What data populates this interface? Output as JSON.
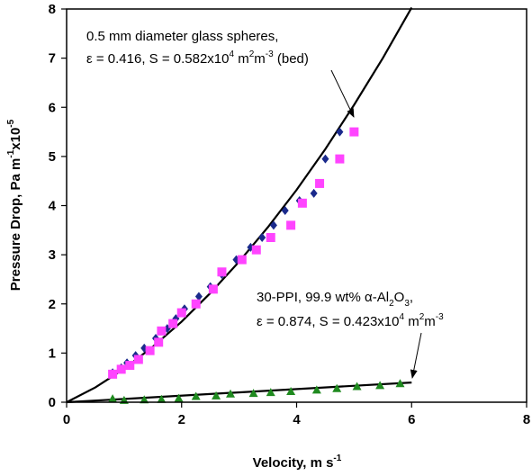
{
  "chart_data": {
    "type": "scatter",
    "xlabel": "Velocity, m s",
    "xlabel_sup": "-1",
    "ylabel": "Pressure Drop, Pa m",
    "ylabel_sup1": "-1",
    "ylabel_mid": "x10",
    "ylabel_sup2": "-5",
    "xlim": [
      0,
      8
    ],
    "ylim": [
      0,
      8
    ],
    "xticks": [
      "0",
      "2",
      "4",
      "6",
      "8"
    ],
    "yticks": [
      "0",
      "1",
      "2",
      "3",
      "4",
      "5",
      "6",
      "7",
      "8"
    ],
    "grid": false,
    "series": [
      {
        "marker": "diamond",
        "color": "#1a2a8c",
        "x": [
          0.8,
          0.95,
          1.05,
          1.2,
          1.35,
          1.55,
          1.75,
          1.9,
          2.05,
          2.3,
          2.5,
          2.7,
          2.95,
          3.2,
          3.4,
          3.6,
          3.8,
          4.05,
          4.3,
          4.5,
          4.75
        ],
        "y": [
          0.6,
          0.7,
          0.8,
          0.95,
          1.1,
          1.3,
          1.5,
          1.7,
          1.9,
          2.15,
          2.35,
          2.6,
          2.9,
          3.15,
          3.35,
          3.6,
          3.9,
          4.1,
          4.25,
          4.95,
          5.5
        ]
      },
      {
        "marker": "square",
        "color": "#ff44ff",
        "x": [
          0.8,
          0.95,
          1.1,
          1.25,
          1.45,
          1.6,
          1.65,
          1.85,
          2.0,
          2.25,
          2.55,
          2.7,
          3.05,
          3.3,
          3.55,
          3.9,
          4.1,
          4.4,
          4.75,
          5.0
        ],
        "y": [
          0.57,
          0.67,
          0.75,
          0.87,
          1.05,
          1.22,
          1.45,
          1.6,
          1.82,
          2.0,
          2.3,
          2.65,
          2.9,
          3.1,
          3.35,
          3.6,
          4.05,
          4.45,
          4.95,
          5.5
        ]
      },
      {
        "marker": "triangle",
        "color": "#1f8a1f",
        "x": [
          0.8,
          1.0,
          1.35,
          1.65,
          1.95,
          2.25,
          2.6,
          2.85,
          3.25,
          3.55,
          3.9,
          4.35,
          4.7,
          5.05,
          5.45,
          5.8
        ],
        "y": [
          0.07,
          0.04,
          0.05,
          0.06,
          0.08,
          0.12,
          0.13,
          0.17,
          0.18,
          0.2,
          0.22,
          0.25,
          0.28,
          0.32,
          0.34,
          0.38
        ]
      }
    ],
    "fits": [
      {
        "x": [
          0,
          0.5,
          1,
          1.5,
          2,
          2.5,
          3,
          3.5,
          4,
          4.5,
          5,
          5.5,
          6
        ],
        "y": [
          0,
          0.3,
          0.68,
          1.13,
          1.64,
          2.22,
          2.86,
          3.56,
          4.32,
          5.15,
          6.05,
          7.0,
          8.03
        ]
      },
      {
        "x": [
          0,
          6
        ],
        "y": [
          0,
          0.4
        ]
      }
    ],
    "annotations": [
      {
        "id": "glass",
        "line1": "0.5 mm diameter glass spheres,",
        "line2_a": "ε = 0.416, S = 0.582x10",
        "line2_sup1": "4",
        "line2_b": " m",
        "line2_sup2": "2",
        "line2_c": "m",
        "line2_sup3": "-3",
        "line2_d": " (bed)"
      },
      {
        "id": "ppi",
        "line1_a": "30-PPI, 99.9 wt% α-Al",
        "line1_sub1": "2",
        "line1_b": "O",
        "line1_sub2": "3",
        "line1_c": ",",
        "line2_a": "ε = 0.874, S = 0.423x10",
        "line2_sup1": "4",
        "line2_b": " m",
        "line2_sup2": "2",
        "line2_c": "m",
        "line2_sup3": "-3"
      }
    ]
  }
}
